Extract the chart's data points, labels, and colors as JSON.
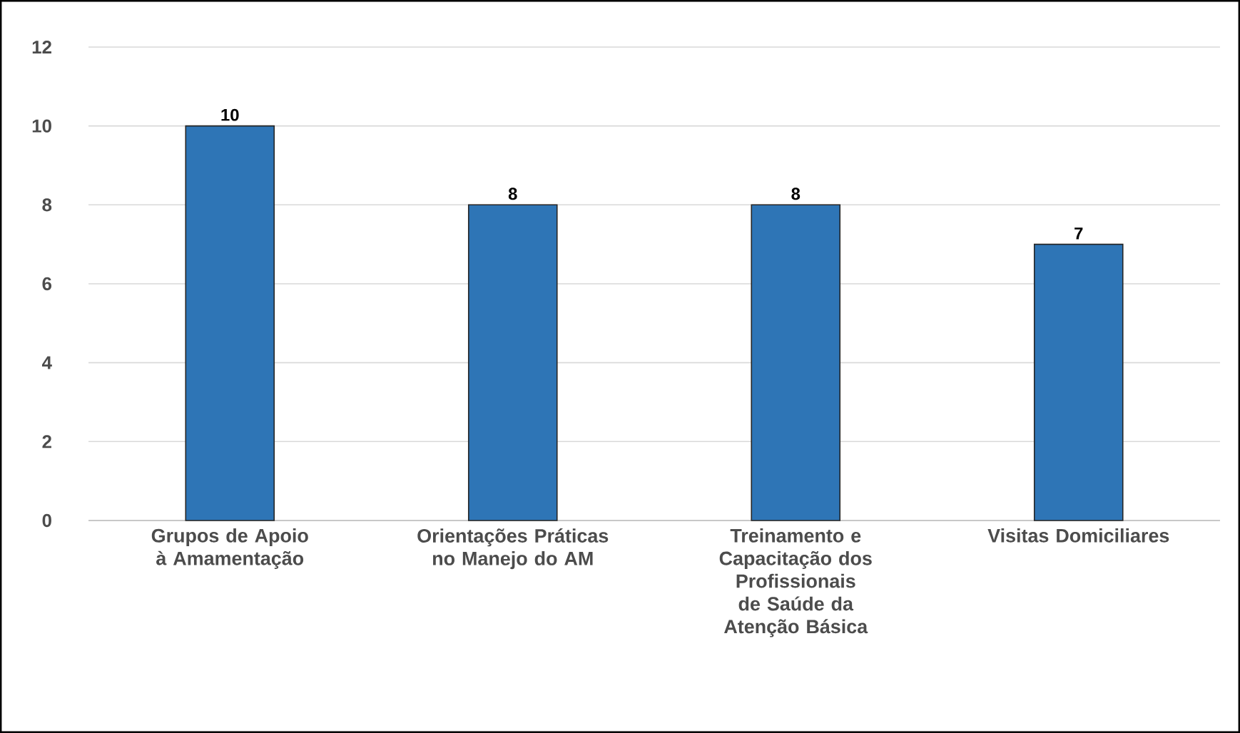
{
  "chart_data": {
    "type": "bar",
    "categories": [
      "Grupos de Apoio à Amamentação",
      "Orientações Práticas no Manejo do AM",
      "Treinamento e Capacitação dos Profissionais de Saúde da Atenção Básica",
      "Visitas Domiciliares"
    ],
    "values": [
      10,
      8,
      8,
      7
    ],
    "color": "#2e75b6",
    "ylim": [
      0,
      12
    ],
    "yticks": [
      0,
      2,
      4,
      6,
      8,
      10,
      12
    ],
    "grid": "y",
    "data_labels": true
  }
}
